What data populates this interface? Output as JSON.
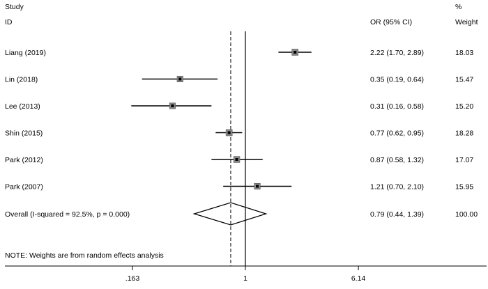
{
  "header": {
    "study_line1": "Study",
    "study_line2": "ID",
    "effect_label": "OR (95% CI)",
    "weight_line1": "%",
    "weight_line2": "Weight"
  },
  "note": "NOTE: Weights are from random effects analysis",
  "chart_data": {
    "type": "forest",
    "measure": "OR",
    "x_scale": "log",
    "xlim": [
      0.13,
      7.5
    ],
    "x_ticks": [
      {
        "value": 0.163,
        "label": ".163"
      },
      {
        "value": 1,
        "label": "1"
      },
      {
        "value": 6.14,
        "label": "6.14"
      }
    ],
    "null_line": 1,
    "studies": [
      {
        "label": "Liang (2019)",
        "or": 2.22,
        "ci_low": 1.7,
        "ci_high": 2.89,
        "ci_text": "2.22 (1.70, 2.89)",
        "weight": 18.03,
        "weight_text": "18.03"
      },
      {
        "label": "Lin (2018)",
        "or": 0.35,
        "ci_low": 0.19,
        "ci_high": 0.64,
        "ci_text": "0.35 (0.19, 0.64)",
        "weight": 15.47,
        "weight_text": "15.47"
      },
      {
        "label": "Lee (2013)",
        "or": 0.31,
        "ci_low": 0.16,
        "ci_high": 0.58,
        "ci_text": "0.31 (0.16, 0.58)",
        "weight": 15.2,
        "weight_text": "15.20"
      },
      {
        "label": "Shin (2015)",
        "or": 0.77,
        "ci_low": 0.62,
        "ci_high": 0.95,
        "ci_text": "0.77 (0.62, 0.95)",
        "weight": 18.28,
        "weight_text": "18.28"
      },
      {
        "label": "Park (2012)",
        "or": 0.87,
        "ci_low": 0.58,
        "ci_high": 1.32,
        "ci_text": "0.87 (0.58, 1.32)",
        "weight": 17.07,
        "weight_text": "17.07"
      },
      {
        "label": "Park (2007)",
        "or": 1.21,
        "ci_low": 0.7,
        "ci_high": 2.1,
        "ci_text": "1.21 (0.70, 2.10)",
        "weight": 15.95,
        "weight_text": "15.95"
      }
    ],
    "overall": {
      "label": "Overall  (I-squared = 92.5%, p = 0.000)",
      "or": 0.79,
      "ci_low": 0.44,
      "ci_high": 1.39,
      "ci_text": "0.79 (0.44, 1.39)",
      "weight": 100.0,
      "weight_text": "100.00"
    }
  }
}
